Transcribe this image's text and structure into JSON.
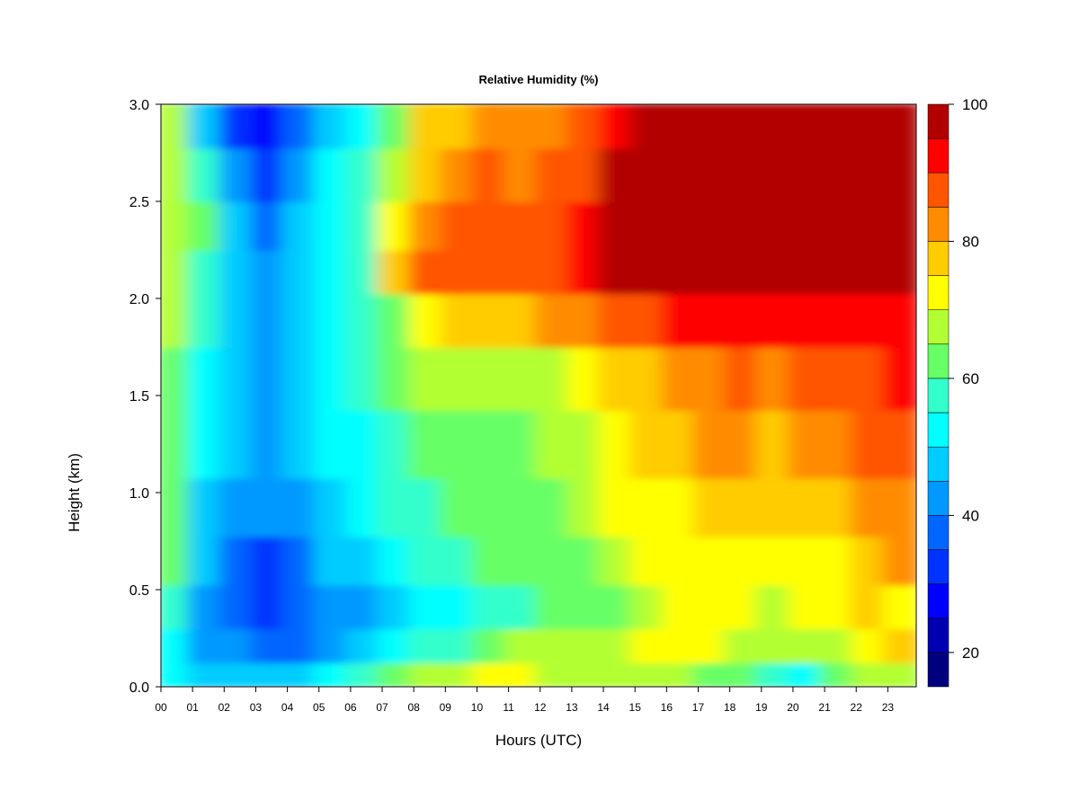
{
  "chart_data": {
    "type": "heatmap",
    "title": "Relative Humidity (%)",
    "xlabel": "Hours (UTC)",
    "ylabel": "Height (km)",
    "xlim": [
      0,
      23.9
    ],
    "ylim": [
      0,
      3.0
    ],
    "x_ticks": [
      "00",
      "01",
      "02",
      "03",
      "04",
      "05",
      "06",
      "07",
      "08",
      "09",
      "10",
      "11",
      "12",
      "13",
      "14",
      "15",
      "16",
      "17",
      "18",
      "19",
      "20",
      "21",
      "22",
      "23"
    ],
    "y_ticks": [
      "0.0",
      "0.5",
      "1.0",
      "1.5",
      "2.0",
      "2.5",
      "3.0"
    ],
    "colorbar": {
      "levels": [
        15,
        20,
        25,
        30,
        35,
        40,
        45,
        50,
        55,
        60,
        65,
        70,
        75,
        80,
        85,
        90,
        95,
        100
      ],
      "tick_labels": [
        "20",
        "40",
        "60",
        "80",
        "100"
      ],
      "colors": [
        "#00007f",
        "#0000b2",
        "#0000ff",
        "#0033ff",
        "#0066ff",
        "#0099ff",
        "#00ccff",
        "#00ffff",
        "#33ffcc",
        "#66ff66",
        "#b2ff33",
        "#ffff00",
        "#ffcc00",
        "#ff8c00",
        "#ff5500",
        "#ff0000",
        "#b20000",
        "#7f0000"
      ]
    },
    "heights_km": [
      0.05,
      0.2,
      0.4,
      0.65,
      0.9,
      1.25,
      1.6,
      1.9,
      2.15,
      2.35,
      2.65,
      2.9
    ],
    "hour_columns": [
      0,
      1,
      2,
      3,
      4,
      5,
      6,
      7,
      8,
      9,
      10,
      11,
      12,
      13,
      14,
      15,
      16,
      17,
      18,
      19,
      20,
      21,
      22,
      23
    ],
    "values": [
      [
        50,
        52,
        55,
        60,
        62,
        63,
        64,
        65,
        66,
        67,
        68,
        68
      ],
      [
        45,
        42,
        40,
        45,
        48,
        50,
        52,
        55,
        58,
        62,
        55,
        45
      ],
      [
        48,
        40,
        35,
        38,
        42,
        45,
        45,
        45,
        45,
        45,
        40,
        33
      ],
      [
        45,
        38,
        33,
        34,
        40,
        42,
        42,
        42,
        40,
        38,
        33,
        28
      ],
      [
        48,
        38,
        36,
        38,
        42,
        45,
        45,
        45,
        45,
        45,
        40,
        35
      ],
      [
        50,
        42,
        40,
        45,
        48,
        50,
        50,
        52,
        52,
        52,
        50,
        45
      ],
      [
        55,
        48,
        42,
        48,
        52,
        52,
        55,
        55,
        58,
        58,
        55,
        52
      ],
      [
        60,
        52,
        48,
        52,
        55,
        58,
        60,
        62,
        75,
        72,
        65,
        60
      ],
      [
        65,
        55,
        50,
        55,
        58,
        60,
        65,
        70,
        85,
        82,
        78,
        75
      ],
      [
        68,
        58,
        52,
        58,
        60,
        62,
        66,
        75,
        88,
        86,
        82,
        78
      ],
      [
        70,
        62,
        55,
        60,
        62,
        62,
        66,
        75,
        88,
        88,
        85,
        80
      ],
      [
        70,
        65,
        58,
        60,
        63,
        64,
        68,
        78,
        88,
        85,
        82,
        80
      ],
      [
        68,
        65,
        60,
        62,
        64,
        66,
        68,
        80,
        88,
        85,
        85,
        82
      ],
      [
        66,
        66,
        62,
        64,
        66,
        68,
        72,
        82,
        92,
        92,
        88,
        85
      ],
      [
        66,
        68,
        64,
        66,
        70,
        72,
        76,
        85,
        98,
        98,
        95,
        90
      ],
      [
        68,
        72,
        68,
        70,
        72,
        75,
        78,
        88,
        98,
        98,
        98,
        95
      ],
      [
        66,
        72,
        70,
        72,
        74,
        76,
        80,
        90,
        98,
        98,
        98,
        98
      ],
      [
        64,
        70,
        70,
        72,
        75,
        80,
        82,
        90,
        98,
        98,
        98,
        98
      ],
      [
        60,
        68,
        70,
        72,
        76,
        82,
        85,
        92,
        98,
        98,
        98,
        98
      ],
      [
        55,
        65,
        68,
        72,
        76,
        78,
        82,
        90,
        98,
        98,
        98,
        98
      ],
      [
        52,
        65,
        70,
        72,
        75,
        82,
        85,
        92,
        98,
        98,
        98,
        98
      ],
      [
        62,
        68,
        72,
        74,
        78,
        84,
        88,
        94,
        98,
        98,
        98,
        98
      ],
      [
        66,
        72,
        76,
        78,
        82,
        88,
        88,
        94,
        98,
        98,
        98,
        98
      ],
      [
        66,
        75,
        74,
        80,
        84,
        88,
        92,
        94,
        98,
        98,
        98,
        98
      ]
    ],
    "grid": false
  }
}
